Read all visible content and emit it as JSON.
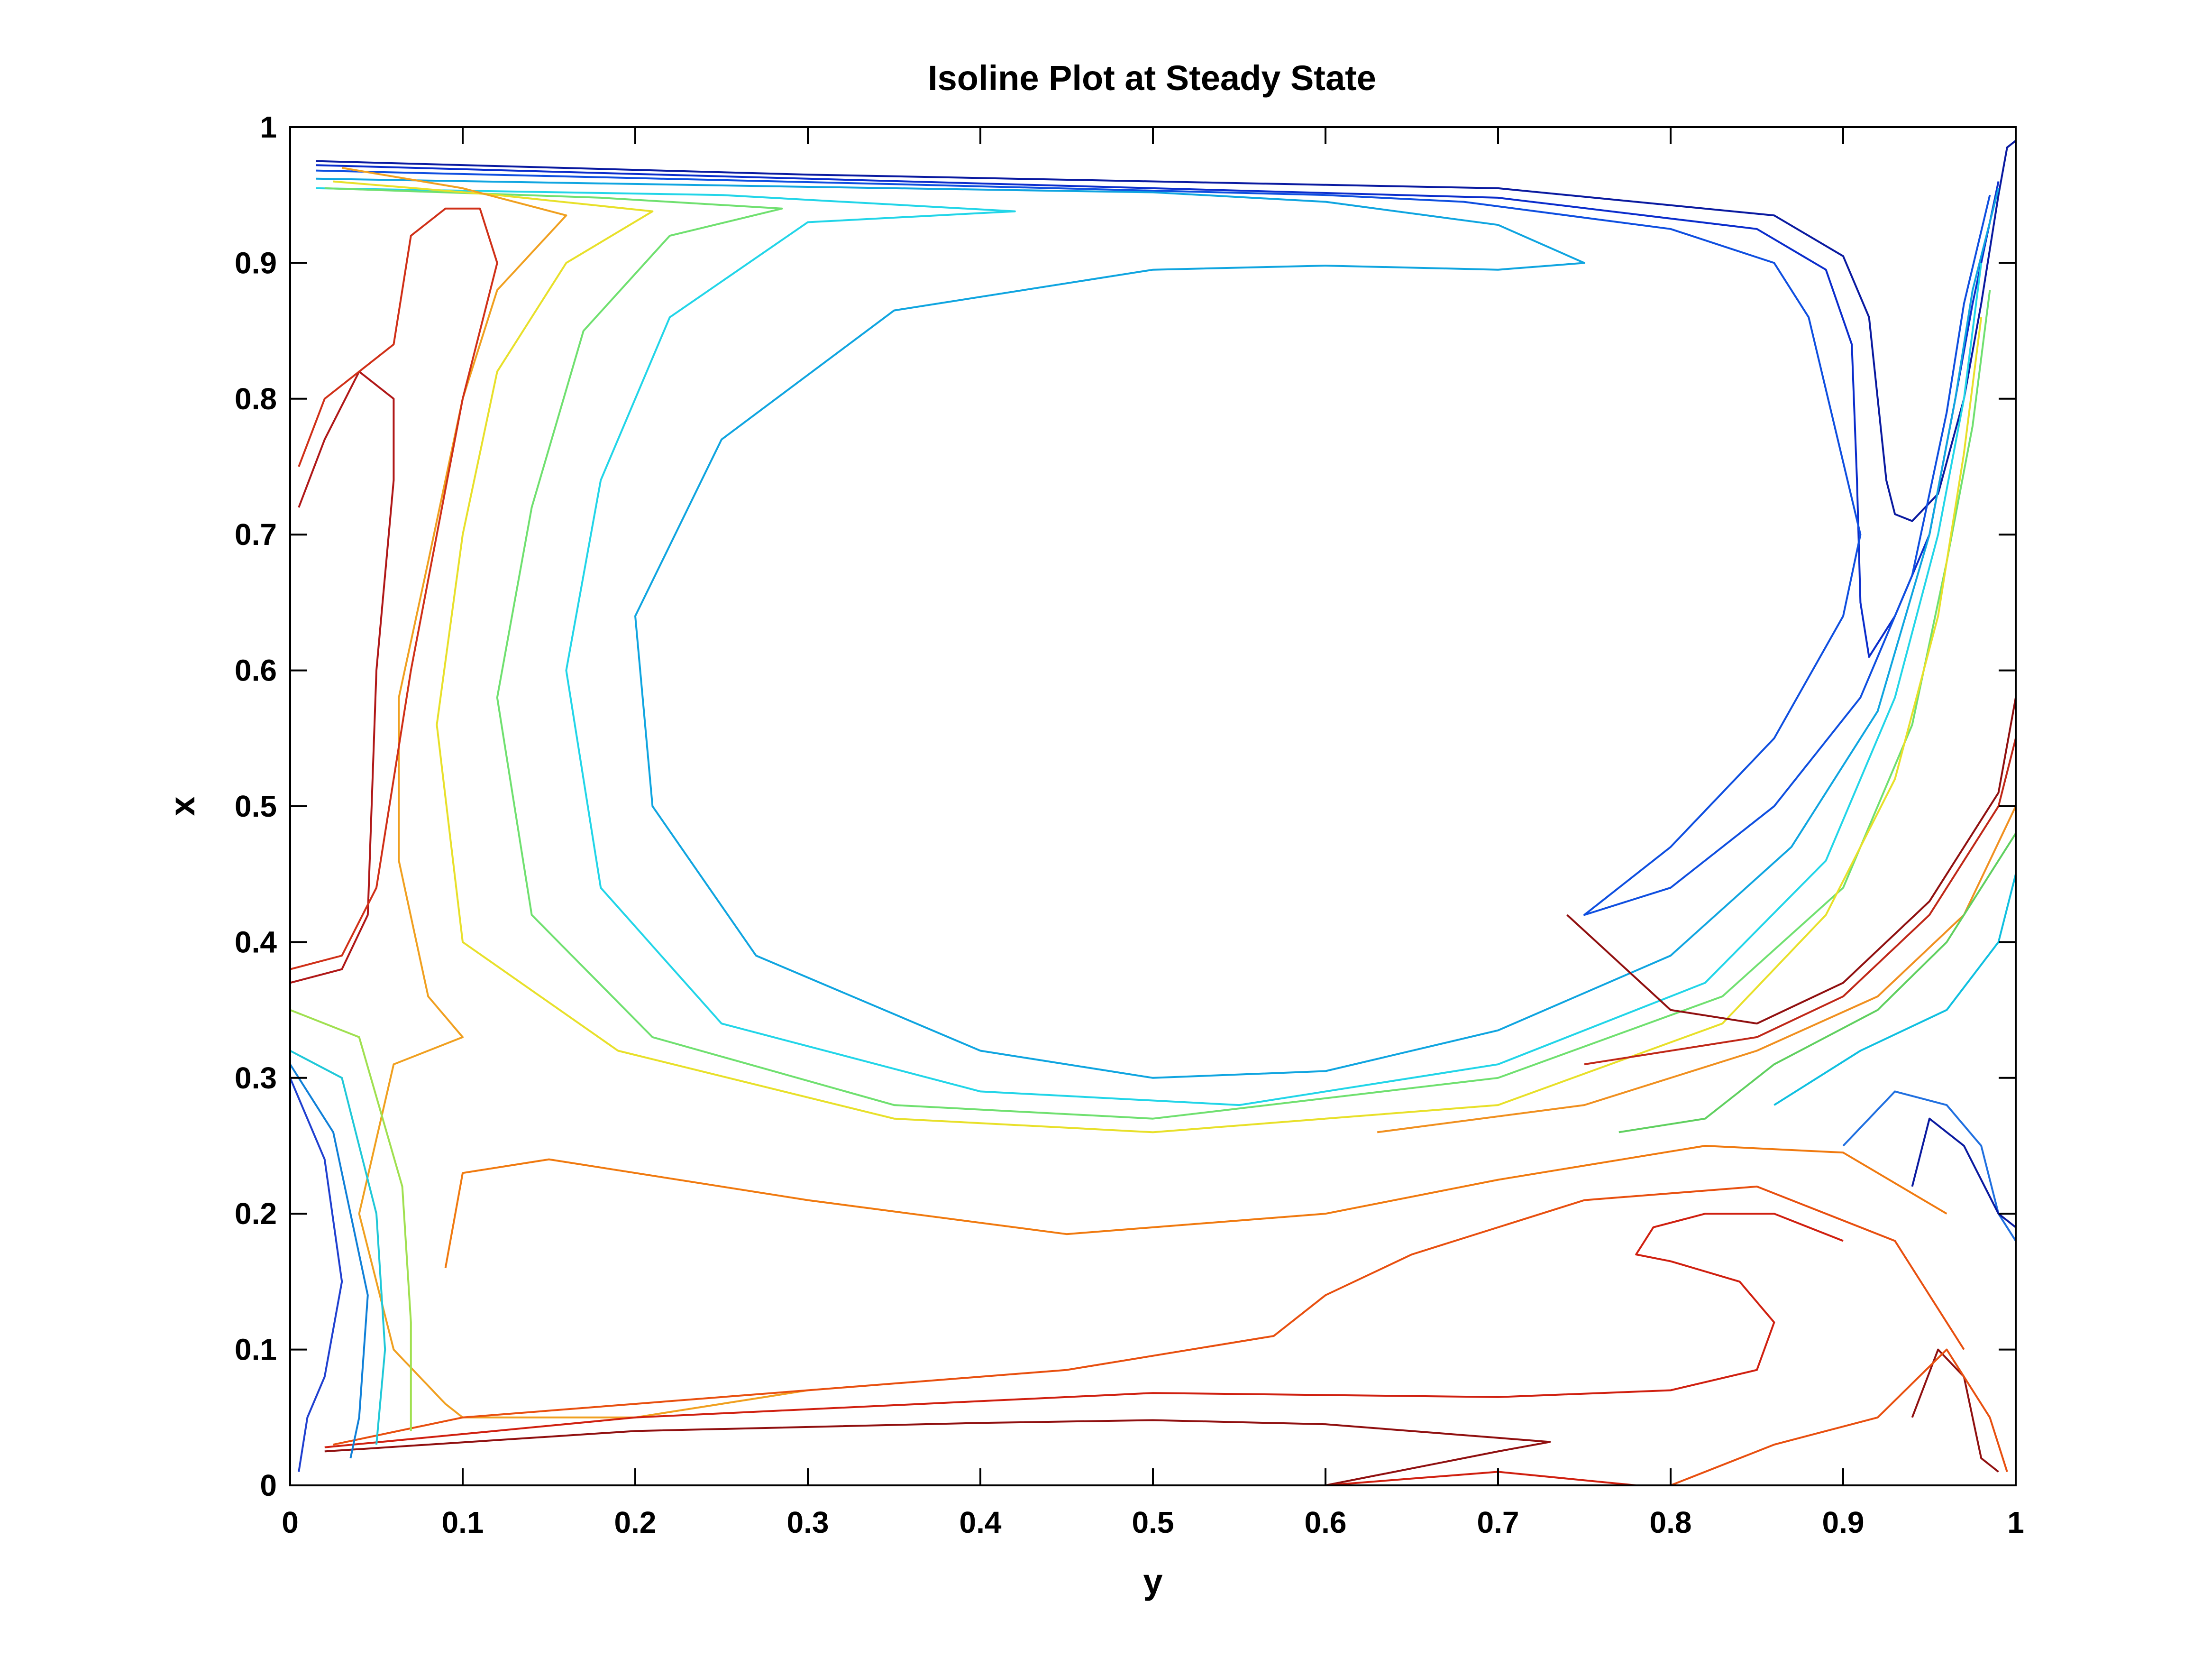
{
  "chart_data": {
    "type": "contour",
    "title": "Isoline Plot at Steady State",
    "xlabel": "y",
    "ylabel": "x",
    "xlim": [
      0,
      1
    ],
    "ylim": [
      0,
      1
    ],
    "xticks": [
      "0",
      "0.1",
      "0.2",
      "0.3",
      "0.4",
      "0.5",
      "0.6",
      "0.7",
      "0.8",
      "0.9",
      "1"
    ],
    "yticks": [
      "0",
      "0.1",
      "0.2",
      "0.3",
      "0.4",
      "0.5",
      "0.6",
      "0.7",
      "0.8",
      "0.9",
      "1"
    ],
    "grid": false,
    "colormap": "jet",
    "isolines": [
      {
        "color": "#0a1aa0",
        "points": [
          [
            0.015,
            0.975
          ],
          [
            0.3,
            0.965
          ],
          [
            0.7,
            0.955
          ],
          [
            0.86,
            0.935
          ],
          [
            0.9,
            0.905
          ],
          [
            0.915,
            0.86
          ],
          [
            0.92,
            0.8
          ],
          [
            0.925,
            0.74
          ],
          [
            0.93,
            0.715
          ],
          [
            0.94,
            0.71
          ],
          [
            0.955,
            0.73
          ],
          [
            0.97,
            0.8
          ],
          [
            0.98,
            0.87
          ],
          [
            0.99,
            0.95
          ],
          [
            0.995,
            0.985
          ],
          [
            1.0,
            0.99
          ]
        ]
      },
      {
        "color": "#0b2dcc",
        "points": [
          [
            0.015,
            0.972
          ],
          [
            0.3,
            0.962
          ],
          [
            0.7,
            0.948
          ],
          [
            0.85,
            0.925
          ],
          [
            0.89,
            0.895
          ],
          [
            0.905,
            0.84
          ],
          [
            0.908,
            0.74
          ],
          [
            0.91,
            0.65
          ],
          [
            0.915,
            0.61
          ],
          [
            0.93,
            0.64
          ],
          [
            0.95,
            0.7
          ],
          [
            0.965,
            0.8
          ],
          [
            0.975,
            0.87
          ],
          [
            0.99,
            0.96
          ]
        ]
      },
      {
        "color": "#0f4fe0",
        "points": [
          [
            0.015,
            0.968
          ],
          [
            0.35,
            0.958
          ],
          [
            0.6,
            0.95
          ],
          [
            0.68,
            0.945
          ],
          [
            0.8,
            0.925
          ],
          [
            0.86,
            0.9
          ],
          [
            0.88,
            0.86
          ],
          [
            0.895,
            0.78
          ],
          [
            0.91,
            0.7
          ],
          [
            0.9,
            0.64
          ],
          [
            0.86,
            0.55
          ],
          [
            0.8,
            0.47
          ],
          [
            0.76,
            0.43
          ],
          [
            0.75,
            0.42
          ],
          [
            0.8,
            0.44
          ],
          [
            0.86,
            0.5
          ],
          [
            0.91,
            0.58
          ],
          [
            0.94,
            0.67
          ],
          [
            0.96,
            0.79
          ],
          [
            0.97,
            0.87
          ],
          [
            0.985,
            0.95
          ]
        ]
      },
      {
        "color": "#10a5e0",
        "points": [
          [
            0.015,
            0.962
          ],
          [
            0.3,
            0.956
          ],
          [
            0.5,
            0.952
          ],
          [
            0.6,
            0.945
          ],
          [
            0.7,
            0.928
          ],
          [
            0.75,
            0.9
          ],
          [
            0.7,
            0.895
          ],
          [
            0.6,
            0.898
          ],
          [
            0.5,
            0.895
          ],
          [
            0.35,
            0.865
          ],
          [
            0.25,
            0.77
          ],
          [
            0.2,
            0.64
          ],
          [
            0.21,
            0.5
          ],
          [
            0.27,
            0.39
          ],
          [
            0.4,
            0.32
          ],
          [
            0.5,
            0.3
          ],
          [
            0.6,
            0.305
          ],
          [
            0.7,
            0.335
          ],
          [
            0.8,
            0.39
          ],
          [
            0.87,
            0.47
          ],
          [
            0.92,
            0.57
          ],
          [
            0.95,
            0.7
          ],
          [
            0.965,
            0.8
          ],
          [
            0.975,
            0.88
          ],
          [
            0.99,
            0.955
          ]
        ]
      },
      {
        "color": "#22d5e8",
        "points": [
          [
            0.015,
            0.955
          ],
          [
            0.25,
            0.95
          ],
          [
            0.42,
            0.938
          ],
          [
            0.3,
            0.93
          ],
          [
            0.22,
            0.86
          ],
          [
            0.18,
            0.74
          ],
          [
            0.16,
            0.6
          ],
          [
            0.18,
            0.44
          ],
          [
            0.25,
            0.34
          ],
          [
            0.4,
            0.29
          ],
          [
            0.55,
            0.28
          ],
          [
            0.7,
            0.31
          ],
          [
            0.82,
            0.37
          ],
          [
            0.89,
            0.46
          ],
          [
            0.93,
            0.58
          ],
          [
            0.955,
            0.7
          ],
          [
            0.97,
            0.8
          ],
          [
            0.98,
            0.9
          ]
        ]
      },
      {
        "color": "#70e070",
        "points": [
          [
            0.02,
            0.955
          ],
          [
            0.18,
            0.948
          ],
          [
            0.285,
            0.94
          ],
          [
            0.22,
            0.92
          ],
          [
            0.17,
            0.85
          ],
          [
            0.14,
            0.72
          ],
          [
            0.12,
            0.58
          ],
          [
            0.14,
            0.42
          ],
          [
            0.21,
            0.33
          ],
          [
            0.35,
            0.28
          ],
          [
            0.5,
            0.27
          ],
          [
            0.7,
            0.3
          ],
          [
            0.83,
            0.36
          ],
          [
            0.9,
            0.44
          ],
          [
            0.94,
            0.56
          ],
          [
            0.96,
            0.68
          ],
          [
            0.975,
            0.78
          ],
          [
            0.985,
            0.88
          ]
        ]
      },
      {
        "color": "#e8e02a",
        "points": [
          [
            0.025,
            0.96
          ],
          [
            0.12,
            0.95
          ],
          [
            0.21,
            0.938
          ],
          [
            0.16,
            0.9
          ],
          [
            0.12,
            0.82
          ],
          [
            0.1,
            0.7
          ],
          [
            0.085,
            0.56
          ],
          [
            0.1,
            0.4
          ],
          [
            0.19,
            0.32
          ],
          [
            0.35,
            0.27
          ],
          [
            0.5,
            0.26
          ],
          [
            0.7,
            0.28
          ],
          [
            0.83,
            0.34
          ],
          [
            0.89,
            0.42
          ],
          [
            0.93,
            0.52
          ],
          [
            0.955,
            0.64
          ],
          [
            0.97,
            0.76
          ],
          [
            0.98,
            0.86
          ]
        ]
      },
      {
        "color": "#f0a020",
        "points": [
          [
            0.03,
            0.97
          ],
          [
            0.1,
            0.955
          ],
          [
            0.16,
            0.935
          ],
          [
            0.12,
            0.88
          ],
          [
            0.1,
            0.8
          ],
          [
            0.08,
            0.68
          ],
          [
            0.063,
            0.58
          ],
          [
            0.063,
            0.46
          ],
          [
            0.08,
            0.36
          ],
          [
            0.1,
            0.33
          ],
          [
            0.06,
            0.31
          ],
          [
            0.04,
            0.2
          ],
          [
            0.06,
            0.1
          ],
          [
            0.09,
            0.06
          ],
          [
            0.1,
            0.05
          ],
          [
            0.2,
            0.05
          ],
          [
            0.3,
            0.07
          ]
        ]
      },
      {
        "color": "#f07a10",
        "points": [
          [
            0.09,
            0.16
          ],
          [
            0.1,
            0.23
          ],
          [
            0.15,
            0.24
          ],
          [
            0.3,
            0.21
          ],
          [
            0.45,
            0.185
          ],
          [
            0.6,
            0.2
          ],
          [
            0.7,
            0.225
          ],
          [
            0.82,
            0.25
          ],
          [
            0.9,
            0.245
          ],
          [
            0.96,
            0.2
          ]
        ]
      },
      {
        "color": "#e85010",
        "points": [
          [
            0.025,
            0.03
          ],
          [
            0.1,
            0.05
          ],
          [
            0.3,
            0.07
          ],
          [
            0.45,
            0.085
          ],
          [
            0.57,
            0.11
          ],
          [
            0.6,
            0.14
          ],
          [
            0.65,
            0.17
          ],
          [
            0.75,
            0.21
          ],
          [
            0.85,
            0.22
          ],
          [
            0.93,
            0.18
          ],
          [
            0.97,
            0.1
          ]
        ]
      },
      {
        "color": "#d02010",
        "points": [
          [
            0.02,
            0.028
          ],
          [
            0.2,
            0.05
          ],
          [
            0.4,
            0.062
          ],
          [
            0.5,
            0.068
          ],
          [
            0.7,
            0.065
          ],
          [
            0.8,
            0.07
          ],
          [
            0.85,
            0.085
          ],
          [
            0.86,
            0.12
          ],
          [
            0.84,
            0.15
          ],
          [
            0.8,
            0.165
          ],
          [
            0.78,
            0.17
          ],
          [
            0.79,
            0.19
          ],
          [
            0.82,
            0.2
          ],
          [
            0.86,
            0.2
          ],
          [
            0.9,
            0.18
          ]
        ]
      },
      {
        "color": "#901010",
        "points": [
          [
            0.02,
            0.025
          ],
          [
            0.2,
            0.04
          ],
          [
            0.4,
            0.046
          ],
          [
            0.5,
            0.048
          ],
          [
            0.6,
            0.045
          ],
          [
            0.7,
            0.035
          ],
          [
            0.73,
            0.032
          ],
          [
            0.7,
            0.025
          ],
          [
            0.6,
            0.0
          ]
        ]
      },
      {
        "color": "#b01818",
        "points": [
          [
            0.005,
            0.72
          ],
          [
            0.02,
            0.77
          ],
          [
            0.04,
            0.82
          ],
          [
            0.06,
            0.8
          ],
          [
            0.06,
            0.74
          ],
          [
            0.05,
            0.6
          ],
          [
            0.045,
            0.42
          ],
          [
            0.03,
            0.38
          ],
          [
            0.0,
            0.37
          ]
        ]
      },
      {
        "color": "#d03018",
        "points": [
          [
            0.005,
            0.75
          ],
          [
            0.02,
            0.8
          ],
          [
            0.06,
            0.84
          ],
          [
            0.07,
            0.92
          ],
          [
            0.09,
            0.94
          ],
          [
            0.11,
            0.94
          ],
          [
            0.12,
            0.9
          ],
          [
            0.1,
            0.8
          ],
          [
            0.07,
            0.6
          ],
          [
            0.05,
            0.44
          ],
          [
            0.03,
            0.39
          ],
          [
            0.0,
            0.38
          ]
        ]
      },
      {
        "color": "#2040d0",
        "points": [
          [
            0.0,
            0.3
          ],
          [
            0.02,
            0.24
          ],
          [
            0.03,
            0.15
          ],
          [
            0.02,
            0.08
          ],
          [
            0.01,
            0.05
          ],
          [
            0.005,
            0.01
          ]
        ]
      },
      {
        "color": "#1080d8",
        "points": [
          [
            0.0,
            0.31
          ],
          [
            0.025,
            0.26
          ],
          [
            0.045,
            0.14
          ],
          [
            0.04,
            0.05
          ],
          [
            0.035,
            0.02
          ]
        ]
      },
      {
        "color": "#20c8d8",
        "points": [
          [
            0.0,
            0.32
          ],
          [
            0.03,
            0.3
          ],
          [
            0.05,
            0.2
          ],
          [
            0.055,
            0.1
          ],
          [
            0.05,
            0.03
          ]
        ]
      },
      {
        "color": "#a0e050",
        "points": [
          [
            0.0,
            0.35
          ],
          [
            0.04,
            0.33
          ],
          [
            0.065,
            0.22
          ],
          [
            0.07,
            0.12
          ],
          [
            0.07,
            0.04
          ]
        ]
      },
      {
        "color": "#901010",
        "points": [
          [
            0.74,
            0.42
          ],
          [
            0.8,
            0.35
          ],
          [
            0.85,
            0.34
          ],
          [
            0.9,
            0.37
          ],
          [
            0.95,
            0.43
          ],
          [
            0.99,
            0.51
          ],
          [
            1.0,
            0.58
          ]
        ]
      },
      {
        "color": "#c02818",
        "points": [
          [
            0.75,
            0.31
          ],
          [
            0.85,
            0.33
          ],
          [
            0.9,
            0.36
          ],
          [
            0.95,
            0.42
          ],
          [
            0.99,
            0.5
          ],
          [
            1.0,
            0.55
          ]
        ]
      },
      {
        "color": "#f09020",
        "points": [
          [
            0.63,
            0.26
          ],
          [
            0.75,
            0.28
          ],
          [
            0.85,
            0.32
          ],
          [
            0.92,
            0.36
          ],
          [
            0.97,
            0.42
          ],
          [
            1.0,
            0.5
          ]
        ]
      },
      {
        "color": "#60d060",
        "points": [
          [
            0.77,
            0.26
          ],
          [
            0.82,
            0.27
          ],
          [
            0.86,
            0.31
          ],
          [
            0.92,
            0.35
          ],
          [
            0.96,
            0.4
          ],
          [
            1.0,
            0.48
          ]
        ]
      },
      {
        "color": "#10c0e0",
        "points": [
          [
            0.86,
            0.28
          ],
          [
            0.91,
            0.32
          ],
          [
            0.96,
            0.35
          ],
          [
            0.99,
            0.4
          ],
          [
            1.0,
            0.45
          ]
        ]
      },
      {
        "color": "#2070e0",
        "points": [
          [
            0.9,
            0.25
          ],
          [
            0.93,
            0.29
          ],
          [
            0.96,
            0.28
          ],
          [
            0.98,
            0.25
          ],
          [
            0.99,
            0.2
          ],
          [
            1.0,
            0.18
          ]
        ]
      },
      {
        "color": "#0a1aa0",
        "points": [
          [
            0.94,
            0.22
          ],
          [
            0.95,
            0.27
          ],
          [
            0.97,
            0.25
          ],
          [
            0.99,
            0.2
          ],
          [
            1.0,
            0.19
          ]
        ]
      },
      {
        "color": "#901010",
        "points": [
          [
            0.94,
            0.05
          ],
          [
            0.955,
            0.1
          ],
          [
            0.97,
            0.08
          ],
          [
            0.98,
            0.02
          ],
          [
            0.99,
            0.01
          ]
        ]
      },
      {
        "color": "#e85010",
        "points": [
          [
            0.8,
            0.0
          ],
          [
            0.86,
            0.03
          ],
          [
            0.92,
            0.05
          ],
          [
            0.96,
            0.1
          ],
          [
            0.985,
            0.05
          ],
          [
            0.995,
            0.01
          ]
        ]
      },
      {
        "color": "#d02010",
        "points": [
          [
            0.6,
            0.0
          ],
          [
            0.7,
            0.01
          ],
          [
            0.78,
            0.0
          ]
        ]
      }
    ]
  }
}
